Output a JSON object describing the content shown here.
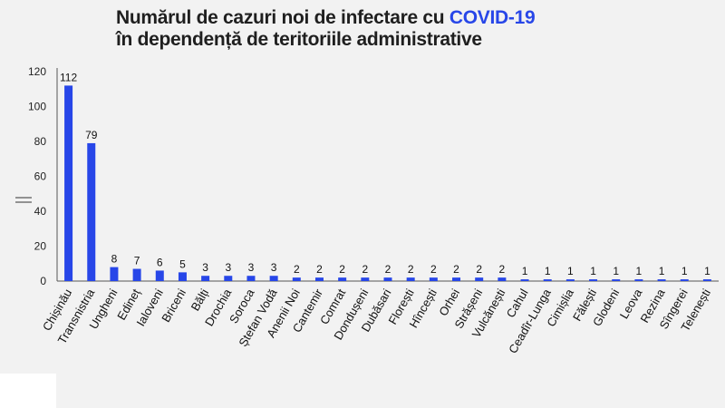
{
  "title": {
    "line1_prefix": "Numărul de cazuri noi de infectare cu ",
    "line1_accent": "COVID-19",
    "line2": "în dependență de teritoriile administrative"
  },
  "colors": {
    "bar": "#2746e8",
    "accent": "#2746e8",
    "background": "#f2f2f2"
  },
  "chart_data": {
    "type": "bar",
    "title": "Numărul de cazuri noi de infectare cu COVID-19 în dependență de teritoriile administrative",
    "categories": [
      "Chișinău",
      "Transnistria",
      "Ungheni",
      "Edineț",
      "Ialoveni",
      "Briceni",
      "Bălți",
      "Drochia",
      "Soroca",
      "Ștefan Vodă",
      "Anenii Noi",
      "Cantemir",
      "Comrat",
      "Dondușeni",
      "Dubăsari",
      "Florești",
      "Hîncești",
      "Orhei",
      "Strășeni",
      "Vulcănești",
      "Cahul",
      "Ceadîr-Lunga",
      "Cimișlia",
      "Fălești",
      "Glodeni",
      "Leova",
      "Rezina",
      "Sîngerei",
      "Telenești"
    ],
    "values": [
      112,
      79,
      8,
      7,
      6,
      5,
      3,
      3,
      3,
      3,
      2,
      2,
      2,
      2,
      2,
      2,
      2,
      2,
      2,
      2,
      1,
      1,
      1,
      1,
      1,
      1,
      1,
      1,
      1
    ],
    "yticks": [
      0,
      20,
      40,
      60,
      80,
      100,
      120
    ],
    "ylim": [
      0,
      120
    ],
    "grid": false,
    "legend": "none"
  }
}
